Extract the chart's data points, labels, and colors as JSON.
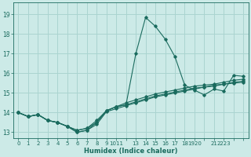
{
  "xlabel": "Humidex (Indice chaleur)",
  "bg_color": "#cceae7",
  "grid_color": "#aad4d0",
  "line_color": "#1a6b5e",
  "xlim": [
    -0.5,
    23.5
  ],
  "ylim": [
    12.7,
    19.6
  ],
  "yticks": [
    13,
    14,
    15,
    16,
    17,
    18,
    19
  ],
  "xtick_positions": [
    0,
    1,
    2,
    3,
    4,
    5,
    6,
    7,
    8,
    9,
    10,
    11,
    12,
    13,
    14,
    15,
    16,
    17,
    18,
    19,
    20,
    21,
    22,
    23
  ],
  "xtick_labels": [
    "0",
    "1",
    "2",
    "3",
    "4",
    "5",
    "6",
    "7",
    "8",
    "9",
    "1011",
    "",
    "13",
    "14",
    "15",
    "16",
    "17",
    "18",
    "1920",
    "",
    "21",
    "2223",
    "",
    ""
  ],
  "series": [
    [
      14.0,
      13.8,
      13.9,
      13.6,
      13.5,
      13.3,
      13.0,
      13.1,
      13.5,
      14.1,
      14.3,
      14.4,
      17.0,
      18.85,
      18.4,
      17.75,
      16.85,
      15.4,
      15.15,
      14.9,
      15.2,
      15.1,
      15.9,
      15.85
    ],
    [
      14.0,
      13.8,
      13.9,
      13.6,
      13.5,
      13.3,
      13.1,
      13.2,
      13.6,
      14.1,
      14.3,
      14.5,
      14.65,
      14.8,
      14.95,
      15.05,
      15.15,
      15.25,
      15.35,
      15.4,
      15.45,
      15.55,
      15.65,
      15.7
    ],
    [
      14.0,
      13.8,
      13.9,
      13.6,
      13.5,
      13.3,
      13.1,
      13.2,
      13.5,
      14.1,
      14.3,
      14.4,
      14.55,
      14.7,
      14.85,
      14.95,
      15.05,
      15.15,
      15.25,
      15.3,
      15.4,
      15.45,
      15.55,
      15.6
    ],
    [
      14.0,
      13.8,
      13.9,
      13.6,
      13.5,
      13.3,
      13.0,
      13.1,
      13.4,
      14.05,
      14.2,
      14.35,
      14.5,
      14.65,
      14.8,
      14.9,
      15.0,
      15.1,
      15.2,
      15.3,
      15.35,
      15.45,
      15.5,
      15.55
    ]
  ]
}
